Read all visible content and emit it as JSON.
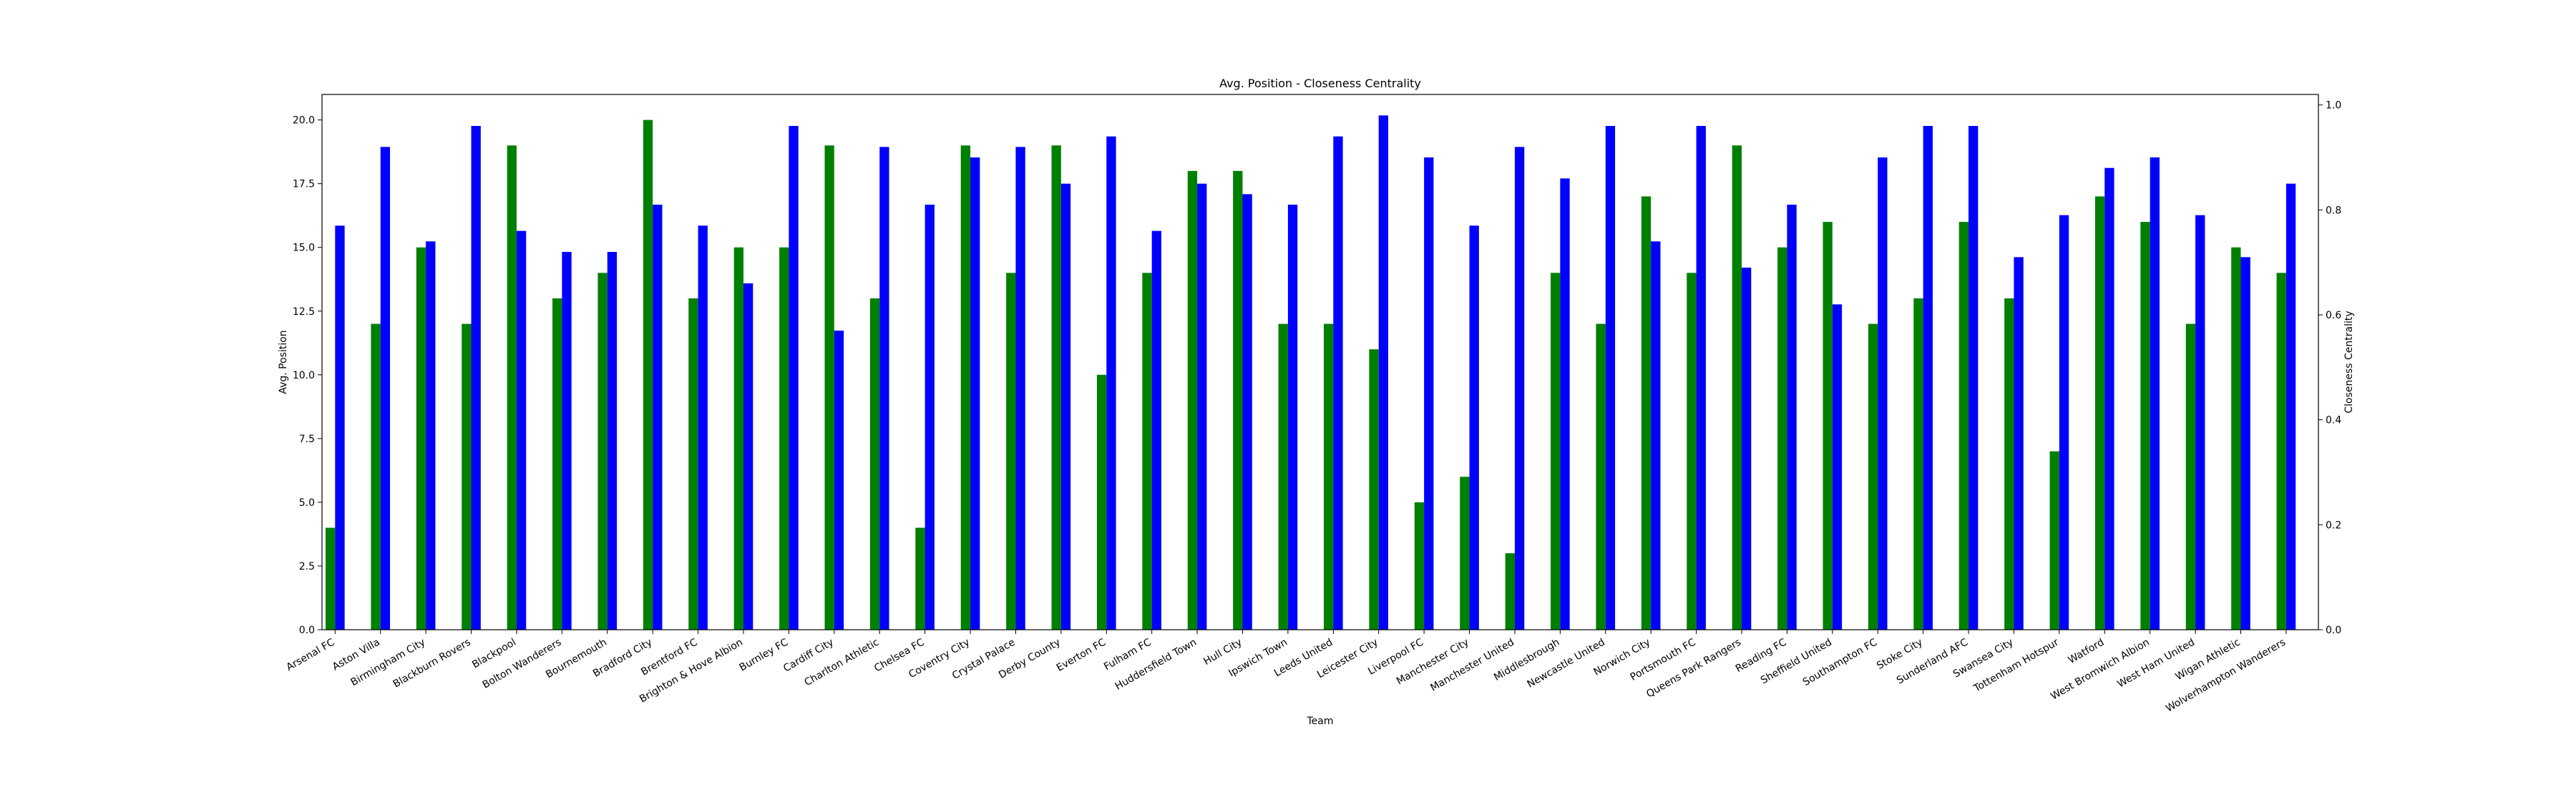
{
  "chart_data": {
    "type": "bar",
    "title": "Avg. Position - Closeness Centrality",
    "xlabel": "Team",
    "ylabel": "Avg. Position",
    "y2label": "Closeness Centrality",
    "ylim": [
      0,
      21
    ],
    "y2lim": [
      0,
      1.02
    ],
    "yticks": [
      "0.0",
      "2.5",
      "5.0",
      "7.5",
      "10.0",
      "12.5",
      "15.0",
      "17.5",
      "20.0"
    ],
    "y2ticks": [
      "0.0",
      "0.2",
      "0.4",
      "0.6",
      "0.8",
      "1.0"
    ],
    "grid": false,
    "legend": "none",
    "categories": [
      "Arsenal FC",
      "Aston Villa",
      "Birmingham City",
      "Blackburn Rovers",
      "Blackpool",
      "Bolton Wanderers",
      "Bournemouth",
      "Bradford City",
      "Brentford FC",
      "Brighton & Hove Albion",
      "Burnley FC",
      "Cardiff City",
      "Charlton Athletic",
      "Chelsea FC",
      "Coventry City",
      "Crystal Palace",
      "Derby County",
      "Everton FC",
      "Fulham FC",
      "Huddersfield Town",
      "Hull City",
      "Ipswich Town",
      "Leeds United",
      "Leicester City",
      "Liverpool FC",
      "Manchester City",
      "Manchester United",
      "Middlesbrough",
      "Newcastle United",
      "Norwich City",
      "Portsmouth FC",
      "Queens Park Rangers",
      "Reading FC",
      "Sheffield United",
      "Southampton FC",
      "Stoke City",
      "Sunderland AFC",
      "Swansea City",
      "Tottenham Hotspur",
      "Watford",
      "West Bromwich Albion",
      "West Ham United",
      "Wigan Athletic",
      "Wolverhampton Wanderers"
    ],
    "series": [
      {
        "axis": "left",
        "color": "#008000",
        "values": [
          4,
          12,
          15,
          12,
          19,
          13,
          14,
          20,
          13,
          15,
          15,
          19,
          13,
          4,
          19,
          14,
          19,
          10,
          14,
          18,
          18,
          12,
          12,
          11,
          5,
          6,
          3,
          14,
          12,
          17,
          14,
          19,
          15,
          16,
          12,
          13,
          16,
          13,
          7,
          17,
          16,
          12,
          15,
          14
        ]
      },
      {
        "axis": "right",
        "color": "#0000ff",
        "values": [
          0.77,
          0.92,
          0.74,
          0.96,
          0.76,
          0.72,
          0.72,
          0.81,
          0.77,
          0.66,
          0.96,
          0.57,
          0.92,
          0.81,
          0.9,
          0.92,
          0.85,
          0.94,
          0.76,
          0.85,
          0.83,
          0.81,
          0.94,
          0.98,
          0.9,
          0.77,
          0.92,
          0.86,
          0.96,
          0.74,
          0.96,
          0.69,
          0.81,
          0.62,
          0.9,
          0.96,
          0.96,
          0.71,
          0.79,
          0.88,
          0.9,
          0.79,
          0.71,
          0.85
        ]
      }
    ]
  }
}
